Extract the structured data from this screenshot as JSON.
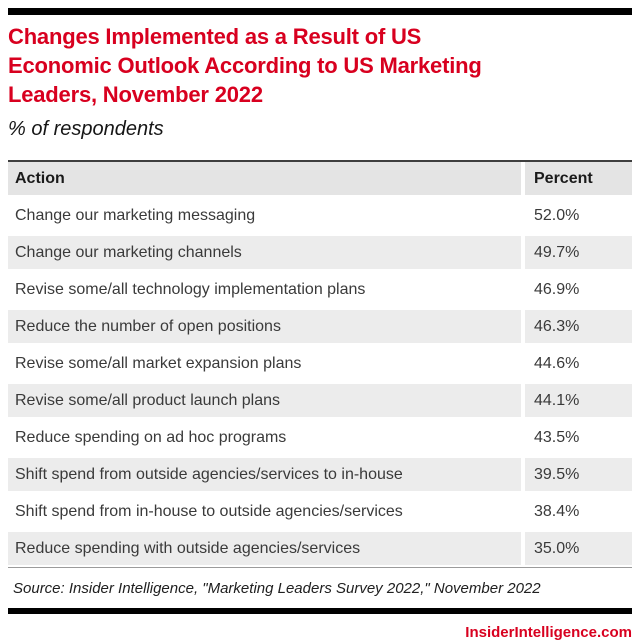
{
  "page": {
    "title_lines": [
      "Changes Implemented as a Result of US",
      "Economic Outlook According to US Marketing",
      "Leaders, November 2022"
    ],
    "subtitle": "% of respondents",
    "source": "Source: Insider Intelligence, \"Marketing Leaders Survey 2022,\" November 2022",
    "website": "InsiderIntelligence.com"
  },
  "colors": {
    "accent": "#d8001f",
    "header_gray": "#e4e4e4",
    "zebra_gray": "#ececec",
    "rule_dark": "#3e3e3e",
    "rule_light": "#9b9b9b",
    "bar_black": "#000000"
  },
  "table": {
    "columns": [
      "Action",
      "Percent"
    ],
    "rows": [
      {
        "action": "Change our marketing messaging",
        "percent": "52.0%"
      },
      {
        "action": "Change our marketing channels",
        "percent": "49.7%"
      },
      {
        "action": "Revise some/all technology implementation plans",
        "percent": "46.9%"
      },
      {
        "action": "Reduce the number of open positions",
        "percent": "46.3%"
      },
      {
        "action": "Revise some/all market expansion plans",
        "percent": "44.6%"
      },
      {
        "action": "Revise some/all product launch plans",
        "percent": "44.1%"
      },
      {
        "action": "Reduce spending on ad hoc programs",
        "percent": "43.5%"
      },
      {
        "action": "Shift spend from outside agencies/services to in-house",
        "percent": "39.5%"
      },
      {
        "action": "Shift spend from in-house to outside agencies/services",
        "percent": "38.4%"
      },
      {
        "action": "Reduce spending with outside agencies/services",
        "percent": "35.0%"
      }
    ]
  },
  "chart_data": {
    "type": "table",
    "title": "Changes Implemented as a Result of US Economic Outlook According to US Marketing Leaders, November 2022",
    "subtitle": "% of respondents",
    "columns": [
      "Action",
      "Percent"
    ],
    "categories": [
      "Change our marketing messaging",
      "Change our marketing channels",
      "Revise some/all technology implementation plans",
      "Reduce the number of open positions",
      "Revise some/all market expansion plans",
      "Revise some/all product launch plans",
      "Reduce spending on ad hoc programs",
      "Shift spend from outside agencies/services to in-house",
      "Shift spend from in-house to outside agencies/services",
      "Reduce spending with outside agencies/services"
    ],
    "values": [
      52.0,
      49.7,
      46.9,
      46.3,
      44.6,
      44.1,
      43.5,
      39.5,
      38.4,
      35.0
    ],
    "unit": "%",
    "source": "Source: Insider Intelligence, \"Marketing Leaders Survey 2022,\" November 2022"
  }
}
